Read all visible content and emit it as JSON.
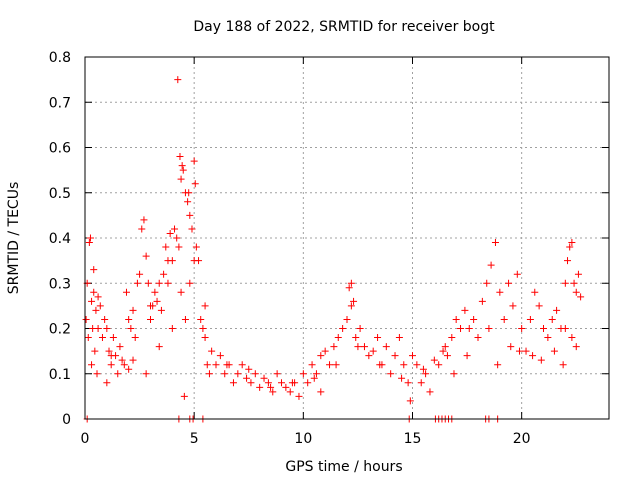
{
  "chart_data": {
    "type": "scatter",
    "title": "Day 188 of 2022, SRMTID for receiver bogt",
    "xlabel": "GPS time / hours",
    "ylabel": "SRMTID / TECUs",
    "xlim": [
      0,
      24
    ],
    "ylim": [
      0,
      0.8
    ],
    "xticks": [
      0,
      5,
      10,
      15,
      20
    ],
    "xtick_labels": [
      "0",
      "5",
      "10",
      "15",
      "20"
    ],
    "yticks": [
      0,
      0.1,
      0.2,
      0.3,
      0.4,
      0.5,
      0.6,
      0.7,
      0.8
    ],
    "ytick_labels": [
      "0",
      "0.1",
      "0.2",
      "0.3",
      "0.4",
      "0.5",
      "0.6",
      "0.7",
      "0.8"
    ],
    "grid": true,
    "marker": "+",
    "series_color": "#ff0000",
    "series": [
      {
        "name": "SRMTID",
        "x": [
          0.05,
          0.1,
          0.15,
          0.2,
          0.25,
          0.3,
          0.35,
          0.4,
          0.45,
          0.5,
          0.55,
          0.6,
          0.7,
          0.8,
          0.9,
          1.0,
          1.1,
          1.2,
          1.3,
          1.4,
          1.5,
          1.6,
          1.7,
          1.8,
          1.9,
          2.0,
          2.1,
          2.2,
          2.3,
          2.4,
          2.5,
          2.6,
          2.7,
          2.8,
          2.9,
          3.0,
          3.1,
          3.2,
          3.3,
          3.4,
          3.5,
          3.6,
          3.7,
          3.8,
          3.9,
          4.0,
          4.1,
          4.2,
          4.3,
          4.35,
          4.4,
          4.45,
          4.5,
          4.6,
          4.7,
          4.8,
          4.9,
          5.0,
          5.1,
          5.2,
          5.3,
          5.4,
          5.5,
          5.6,
          5.7,
          5.8,
          6.0,
          6.2,
          6.4,
          6.6,
          6.8,
          7.0,
          7.2,
          7.4,
          7.6,
          7.8,
          8.0,
          8.2,
          8.4,
          8.6,
          8.8,
          9.0,
          9.2,
          9.4,
          9.6,
          9.8,
          10.0,
          10.2,
          10.4,
          10.6,
          10.8,
          11.0,
          11.2,
          11.4,
          11.6,
          11.8,
          12.0,
          12.1,
          12.2,
          12.3,
          12.4,
          12.6,
          12.8,
          13.0,
          13.2,
          13.4,
          13.6,
          13.8,
          14.0,
          14.2,
          14.4,
          14.6,
          14.8,
          15.0,
          15.2,
          15.4,
          15.6,
          15.8,
          16.0,
          16.2,
          16.4,
          16.6,
          16.8,
          17.0,
          17.2,
          17.4,
          17.6,
          17.8,
          18.0,
          18.2,
          18.4,
          18.6,
          18.8,
          19.0,
          19.2,
          19.4,
          19.6,
          19.8,
          20.0,
          20.2,
          20.4,
          20.6,
          20.8,
          21.0,
          21.2,
          21.4,
          21.6,
          21.8,
          22.0,
          22.1,
          22.2,
          22.3,
          22.4,
          22.5,
          22.6,
          22.7,
          0.3,
          0.6,
          1.2,
          2.0,
          2.8,
          3.4,
          4.0,
          4.4,
          4.6,
          4.8,
          5.0,
          5.5,
          6.5,
          7.5,
          8.5,
          9.5,
          10.5,
          11.5,
          12.5,
          13.5,
          14.5,
          15.5,
          16.5,
          17.5,
          18.5,
          19.5,
          20.5,
          21.5,
          22.0,
          22.5,
          4.25,
          4.55,
          4.75,
          5.05,
          0.4,
          1.0,
          2.2,
          3.0,
          3.8,
          10.8,
          12.2,
          14.9,
          16.9,
          18.9,
          19.9,
          20.9,
          21.9,
          22.3
        ],
        "y": [
          0.22,
          0.3,
          0.18,
          0.39,
          0.4,
          0.26,
          0.2,
          0.28,
          0.15,
          0.24,
          0.1,
          0.27,
          0.25,
          0.18,
          0.22,
          0.2,
          0.15,
          0.12,
          0.18,
          0.14,
          0.1,
          0.16,
          0.13,
          0.12,
          0.28,
          0.22,
          0.2,
          0.24,
          0.18,
          0.3,
          0.32,
          0.42,
          0.44,
          0.36,
          0.3,
          0.22,
          0.25,
          0.28,
          0.26,
          0.3,
          0.24,
          0.32,
          0.38,
          0.35,
          0.41,
          0.35,
          0.42,
          0.4,
          0.38,
          0.58,
          0.53,
          0.56,
          0.55,
          0.5,
          0.48,
          0.45,
          0.42,
          0.57,
          0.38,
          0.35,
          0.22,
          0.2,
          0.18,
          0.12,
          0.1,
          0.15,
          0.12,
          0.14,
          0.1,
          0.12,
          0.08,
          0.1,
          0.12,
          0.09,
          0.08,
          0.1,
          0.07,
          0.09,
          0.08,
          0.06,
          0.1,
          0.08,
          0.07,
          0.06,
          0.08,
          0.05,
          0.1,
          0.08,
          0.12,
          0.1,
          0.14,
          0.15,
          0.12,
          0.16,
          0.18,
          0.2,
          0.22,
          0.29,
          0.3,
          0.26,
          0.18,
          0.2,
          0.16,
          0.14,
          0.15,
          0.18,
          0.12,
          0.16,
          0.1,
          0.14,
          0.18,
          0.12,
          0.08,
          0.14,
          0.12,
          0.08,
          0.1,
          0.06,
          0.13,
          0.12,
          0.15,
          0.14,
          0.18,
          0.22,
          0.2,
          0.24,
          0.2,
          0.22,
          0.18,
          0.26,
          0.3,
          0.34,
          0.39,
          0.28,
          0.22,
          0.3,
          0.25,
          0.32,
          0.2,
          0.15,
          0.22,
          0.28,
          0.25,
          0.2,
          0.18,
          0.22,
          0.24,
          0.2,
          0.3,
          0.35,
          0.38,
          0.39,
          0.3,
          0.28,
          0.32,
          0.27,
          0.12,
          0.2,
          0.14,
          0.11,
          0.1,
          0.16,
          0.2,
          0.28,
          0.22,
          0.3,
          0.35,
          0.25,
          0.12,
          0.11,
          0.07,
          0.08,
          0.09,
          0.12,
          0.16,
          0.12,
          0.09,
          0.11,
          0.16,
          0.14,
          0.2,
          0.16,
          0.14,
          0.15,
          0.2,
          0.16,
          0.75,
          0.05,
          0.5,
          0.52,
          0.33,
          0.08,
          0.13,
          0.25,
          0.3,
          0.06,
          0.25,
          0.04,
          0.1,
          0.12,
          0.15,
          0.13,
          0.12,
          0.18
        ],
        "zero_x": [
          0.1,
          4.3,
          4.8,
          4.95,
          5.4,
          14.85,
          16.05,
          16.2,
          16.35,
          16.5,
          16.65,
          16.8,
          18.35,
          18.5,
          18.9
        ]
      }
    ]
  }
}
